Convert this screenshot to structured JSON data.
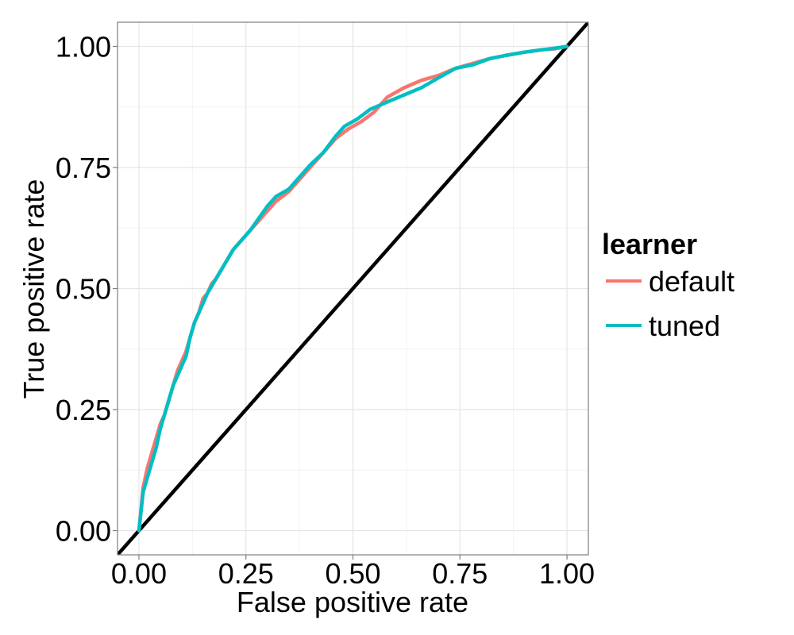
{
  "chart_data": {
    "type": "line",
    "xlabel": "False positive rate",
    "ylabel": "True positive rate",
    "xlim": [
      -0.05,
      1.05
    ],
    "ylim": [
      -0.05,
      1.05
    ],
    "x_ticks": [
      "0.00",
      "0.25",
      "0.50",
      "0.75",
      "1.00"
    ],
    "y_ticks": [
      "0.00",
      "0.25",
      "0.50",
      "0.75",
      "1.00"
    ],
    "x_tick_values": [
      0,
      0.25,
      0.5,
      0.75,
      1
    ],
    "y_tick_values": [
      0,
      0.25,
      0.5,
      0.75,
      1
    ],
    "grid": true,
    "legend": {
      "title": "learner",
      "placement": "right"
    },
    "series": [
      {
        "name": "default",
        "color": "#F8766D",
        "points": [
          [
            0.0,
            0.0
          ],
          [
            0.01,
            0.09
          ],
          [
            0.02,
            0.13
          ],
          [
            0.03,
            0.16
          ],
          [
            0.04,
            0.19
          ],
          [
            0.05,
            0.22
          ],
          [
            0.06,
            0.24
          ],
          [
            0.07,
            0.27
          ],
          [
            0.08,
            0.3
          ],
          [
            0.09,
            0.33
          ],
          [
            0.1,
            0.35
          ],
          [
            0.11,
            0.37
          ],
          [
            0.12,
            0.4
          ],
          [
            0.13,
            0.43
          ],
          [
            0.14,
            0.45
          ],
          [
            0.15,
            0.48
          ],
          [
            0.16,
            0.49
          ],
          [
            0.17,
            0.51
          ],
          [
            0.18,
            0.52
          ],
          [
            0.2,
            0.55
          ],
          [
            0.22,
            0.58
          ],
          [
            0.24,
            0.6
          ],
          [
            0.26,
            0.62
          ],
          [
            0.28,
            0.64
          ],
          [
            0.3,
            0.66
          ],
          [
            0.32,
            0.68
          ],
          [
            0.35,
            0.7
          ],
          [
            0.37,
            0.72
          ],
          [
            0.4,
            0.75
          ],
          [
            0.43,
            0.78
          ],
          [
            0.46,
            0.81
          ],
          [
            0.49,
            0.83
          ],
          [
            0.52,
            0.845
          ],
          [
            0.55,
            0.865
          ],
          [
            0.58,
            0.895
          ],
          [
            0.62,
            0.915
          ],
          [
            0.66,
            0.93
          ],
          [
            0.7,
            0.94
          ],
          [
            0.74,
            0.955
          ],
          [
            0.78,
            0.965
          ],
          [
            0.82,
            0.975
          ],
          [
            0.86,
            0.982
          ],
          [
            0.9,
            0.988
          ],
          [
            0.94,
            0.993
          ],
          [
            0.97,
            0.995
          ],
          [
            1.0,
            1.0
          ]
        ]
      },
      {
        "name": "tuned",
        "color": "#00BFC4",
        "points": [
          [
            0.0,
            0.0
          ],
          [
            0.01,
            0.08
          ],
          [
            0.02,
            0.11
          ],
          [
            0.03,
            0.14
          ],
          [
            0.04,
            0.17
          ],
          [
            0.05,
            0.21
          ],
          [
            0.06,
            0.24
          ],
          [
            0.07,
            0.27
          ],
          [
            0.08,
            0.3
          ],
          [
            0.09,
            0.32
          ],
          [
            0.1,
            0.34
          ],
          [
            0.11,
            0.36
          ],
          [
            0.12,
            0.4
          ],
          [
            0.13,
            0.43
          ],
          [
            0.14,
            0.45
          ],
          [
            0.15,
            0.47
          ],
          [
            0.16,
            0.49
          ],
          [
            0.18,
            0.52
          ],
          [
            0.2,
            0.55
          ],
          [
            0.22,
            0.58
          ],
          [
            0.24,
            0.6
          ],
          [
            0.26,
            0.62
          ],
          [
            0.28,
            0.645
          ],
          [
            0.3,
            0.67
          ],
          [
            0.32,
            0.69
          ],
          [
            0.35,
            0.705
          ],
          [
            0.37,
            0.725
          ],
          [
            0.4,
            0.755
          ],
          [
            0.43,
            0.78
          ],
          [
            0.46,
            0.815
          ],
          [
            0.48,
            0.835
          ],
          [
            0.51,
            0.85
          ],
          [
            0.54,
            0.87
          ],
          [
            0.58,
            0.885
          ],
          [
            0.62,
            0.9
          ],
          [
            0.66,
            0.915
          ],
          [
            0.7,
            0.935
          ],
          [
            0.74,
            0.955
          ],
          [
            0.78,
            0.962
          ],
          [
            0.82,
            0.975
          ],
          [
            0.86,
            0.982
          ],
          [
            0.9,
            0.988
          ],
          [
            0.94,
            0.993
          ],
          [
            0.97,
            0.996
          ],
          [
            1.0,
            1.0
          ]
        ]
      },
      {
        "color": "#000000",
        "points": [
          [
            -0.05,
            -0.05
          ],
          [
            1.05,
            1.05
          ]
        ]
      }
    ]
  }
}
